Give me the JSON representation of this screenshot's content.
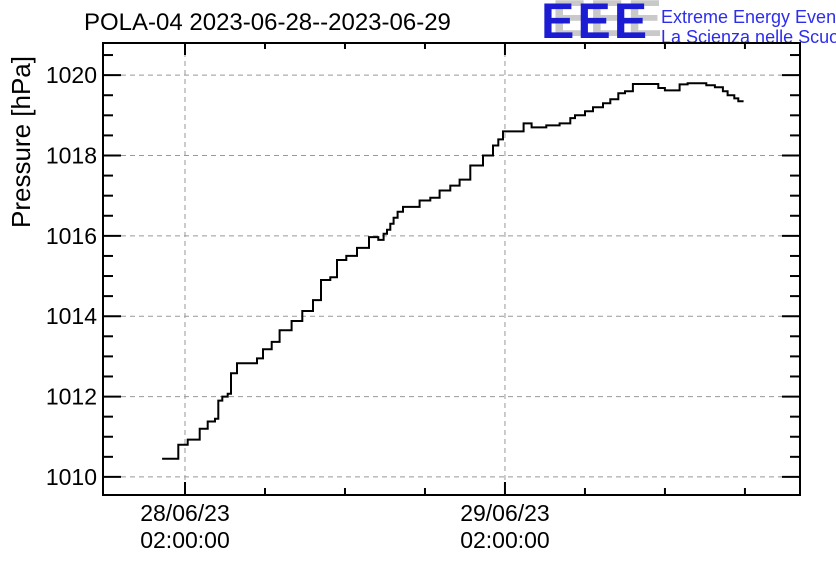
{
  "header": {
    "title": "POLA-04 2023-06-28--2023-06-29",
    "logo": {
      "letters": "EEE",
      "line1": "Extreme Energy Events",
      "line2": "La Scienza nelle Scuole",
      "letters_color": "#1c1cd2",
      "letters_shadow_color": "#c9c9c9",
      "text_color": "#2d2dee"
    }
  },
  "chart_data": {
    "type": "line",
    "line_style": "step-after",
    "title": "POLA-04 2023-06-28--2023-06-29",
    "xlabel": "",
    "ylabel": "Pressure [hPa]",
    "x_unit": "hours since 2023-06-28 00:00:00",
    "grid": true,
    "legend": "none",
    "line_color": "#000000",
    "grid_color": "#999999",
    "frame_color": "#000000",
    "label_color": "#000000",
    "xlim": [
      -4.15,
      48.13
    ],
    "ylim": [
      1009.55,
      1020.8
    ],
    "y_major_ticks": [
      {
        "v": 1010,
        "label": "1010"
      },
      {
        "v": 1012,
        "label": "1012"
      },
      {
        "v": 1014,
        "label": "1014"
      },
      {
        "v": 1016,
        "label": "1016"
      },
      {
        "v": 1018,
        "label": "1018"
      },
      {
        "v": 1020,
        "label": "1020"
      }
    ],
    "y_minor_step": 0.5,
    "x_major_ticks": [
      {
        "t": 2,
        "line1": "28/06/23",
        "line2": "02:00:00"
      },
      {
        "t": 26,
        "line1": "29/06/23",
        "line2": "02:00:00"
      }
    ],
    "x_minor_ticks": [
      8,
      14,
      20,
      32,
      38,
      44
    ],
    "points": [
      [
        0.28,
        1010.45
      ],
      [
        1.5,
        1010.8
      ],
      [
        2.2,
        1010.93
      ],
      [
        3.1,
        1011.2
      ],
      [
        3.7,
        1011.38
      ],
      [
        4.25,
        1011.45
      ],
      [
        4.5,
        1011.9
      ],
      [
        4.8,
        1012.0
      ],
      [
        5.2,
        1012.07
      ],
      [
        5.45,
        1012.58
      ],
      [
        5.9,
        1012.83
      ],
      [
        7.4,
        1012.95
      ],
      [
        7.85,
        1013.18
      ],
      [
        8.5,
        1013.36
      ],
      [
        9.1,
        1013.65
      ],
      [
        10.0,
        1013.88
      ],
      [
        10.8,
        1014.13
      ],
      [
        11.6,
        1014.4
      ],
      [
        12.2,
        1014.9
      ],
      [
        12.9,
        1014.97
      ],
      [
        13.4,
        1015.4
      ],
      [
        14.1,
        1015.5
      ],
      [
        14.9,
        1015.7
      ],
      [
        15.8,
        1015.97
      ],
      [
        16.5,
        1015.9
      ],
      [
        16.9,
        1016.05
      ],
      [
        17.15,
        1016.15
      ],
      [
        17.4,
        1016.3
      ],
      [
        17.65,
        1016.45
      ],
      [
        17.95,
        1016.6
      ],
      [
        18.35,
        1016.72
      ],
      [
        19.6,
        1016.88
      ],
      [
        20.4,
        1016.95
      ],
      [
        21.1,
        1017.13
      ],
      [
        21.9,
        1017.25
      ],
      [
        22.6,
        1017.4
      ],
      [
        23.4,
        1017.75
      ],
      [
        24.35,
        1018.0
      ],
      [
        25.1,
        1018.25
      ],
      [
        25.5,
        1018.4
      ],
      [
        25.85,
        1018.6
      ],
      [
        27.4,
        1018.8
      ],
      [
        28.0,
        1018.7
      ],
      [
        29.1,
        1018.75
      ],
      [
        30.1,
        1018.8
      ],
      [
        30.9,
        1018.93
      ],
      [
        31.25,
        1019.0
      ],
      [
        32.0,
        1019.1
      ],
      [
        32.6,
        1019.2
      ],
      [
        33.35,
        1019.3
      ],
      [
        33.9,
        1019.4
      ],
      [
        34.5,
        1019.55
      ],
      [
        35.0,
        1019.6
      ],
      [
        35.6,
        1019.78
      ],
      [
        37.5,
        1019.68
      ],
      [
        38.0,
        1019.62
      ],
      [
        39.1,
        1019.77
      ],
      [
        39.7,
        1019.8
      ],
      [
        41.1,
        1019.75
      ],
      [
        41.75,
        1019.7
      ],
      [
        42.35,
        1019.6
      ],
      [
        42.7,
        1019.5
      ],
      [
        43.2,
        1019.42
      ],
      [
        43.5,
        1019.35
      ],
      [
        43.9,
        1019.35
      ]
    ]
  }
}
